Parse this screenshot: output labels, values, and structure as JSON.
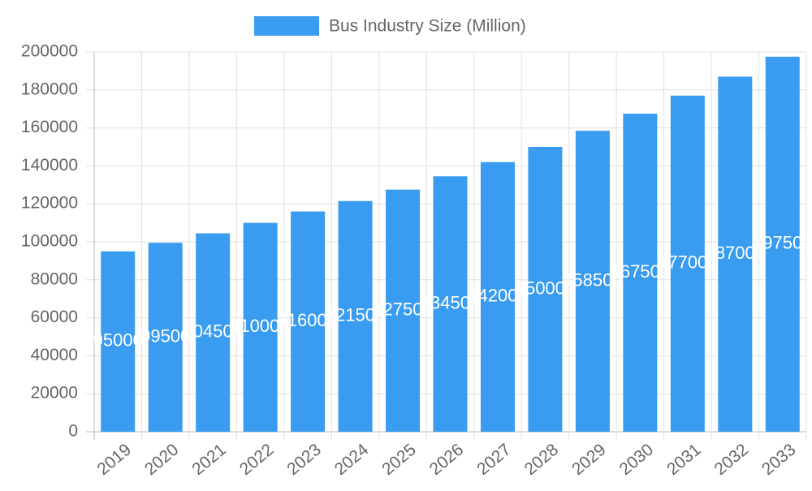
{
  "chart_data": {
    "type": "bar",
    "categories": [
      "2019",
      "2020",
      "2021",
      "2022",
      "2023",
      "2024",
      "2025",
      "2026",
      "2027",
      "2028",
      "2029",
      "2030",
      "2031",
      "2032",
      "2033"
    ],
    "series": [
      {
        "name": "Bus Industry Size (Million)",
        "color": "#3a9cf0",
        "values": [
          95000,
          99500,
          104500,
          110000,
          116000,
          121500,
          127500,
          134500,
          142000,
          150000,
          158500,
          167500,
          177000,
          187000,
          197500
        ]
      }
    ],
    "ylim": [
      0,
      200000
    ],
    "yticks": [
      0,
      20000,
      40000,
      60000,
      80000,
      100000,
      120000,
      140000,
      160000,
      180000,
      200000
    ],
    "grid": true,
    "legend": "top"
  }
}
